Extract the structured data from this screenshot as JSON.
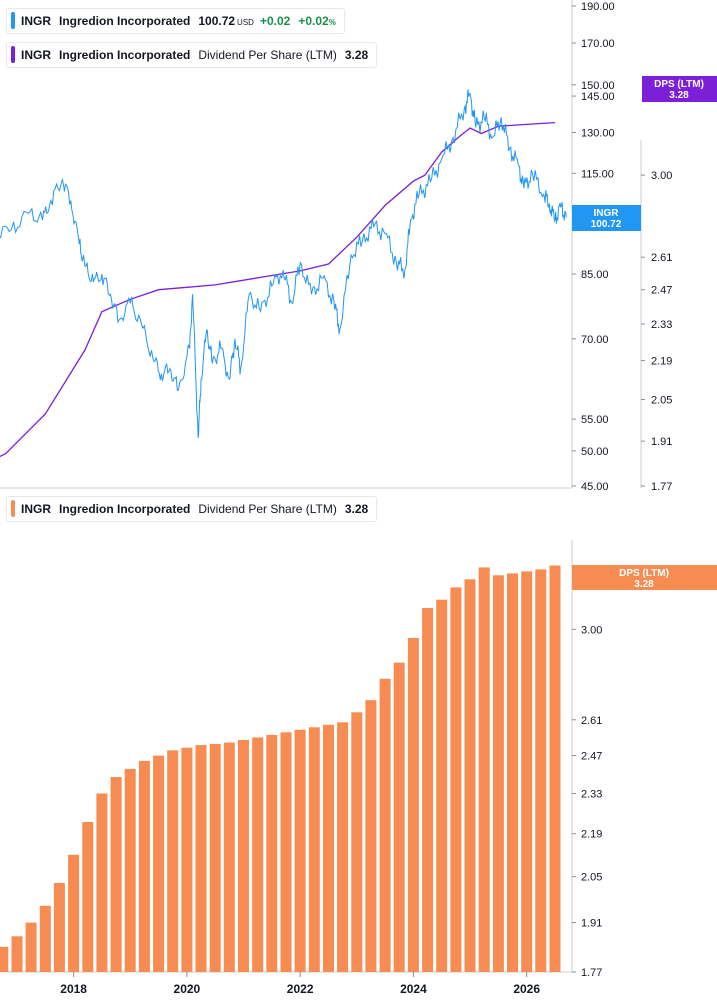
{
  "legend_price": {
    "ticker": "INGR",
    "name": "Ingredion Incorporated",
    "price": "100.72",
    "currency": "USD",
    "change": "+0.02",
    "change_pct": "+0.02",
    "pct_sign": "%"
  },
  "legend_dps": {
    "ticker": "INGR",
    "name": "Ingredion Incorporated",
    "metric": "Dividend Per Share (LTM)",
    "value": "3.28"
  },
  "tags": {
    "price_ticker": "INGR",
    "price_value": "100.72",
    "dps_label": "DPS (LTM)",
    "dps_value": "3.28"
  },
  "colors": {
    "price_line": "#2196f3",
    "dps_line": "#7b1fd9",
    "bars": "#f78c52",
    "legend_price_bar": "#2196f3",
    "legend_dps_top_bar": "#7b1fd9",
    "legend_dps_bottom_bar": "#f78c52"
  },
  "chart_data": [
    {
      "type": "line",
      "title": "INGR Ingredion Incorporated",
      "x_range": [
        2016.0,
        2026.8
      ],
      "price_axis": {
        "scale": "log",
        "ticks": [
          "190.00",
          "170.00",
          "150.00",
          "145.00",
          "130.00",
          "115.00",
          "100.00",
          "85.00",
          "70.00",
          "55.00",
          "50.00",
          "45.00"
        ],
        "range": [
          45,
          190
        ]
      },
      "dps_axis": {
        "scale": "log",
        "ticks": [
          "3.00",
          "2.61",
          "2.47",
          "2.33",
          "2.19",
          "2.05",
          "1.91",
          "1.77"
        ],
        "range": [
          1.77,
          3.55
        ]
      },
      "series": [
        {
          "name": "Ingredion Incorporated",
          "axis": "price",
          "x": [
            2016.0,
            2016.3,
            2016.6,
            2016.9,
            2017.2,
            2017.45,
            2017.6,
            2017.8,
            2017.95,
            2018.1,
            2018.2,
            2018.35,
            2018.5,
            2018.65,
            2018.8,
            2019.0,
            2019.2,
            2019.4,
            2019.55,
            2019.7,
            2019.85,
            2020.05,
            2020.1,
            2020.2,
            2020.25,
            2020.35,
            2020.45,
            2020.6,
            2020.75,
            2020.85,
            2020.95,
            2021.1,
            2021.3,
            2021.5,
            2021.7,
            2021.85,
            2022.0,
            2022.2,
            2022.4,
            2022.6,
            2022.7,
            2022.9,
            2023.1,
            2023.3,
            2023.5,
            2023.7,
            2023.85,
            2023.95,
            2024.1,
            2024.3,
            2024.5,
            2024.7,
            2024.9,
            2025.0,
            2025.1,
            2025.25,
            2025.4,
            2025.55,
            2025.7,
            2025.85,
            2025.95,
            2026.1,
            2026.3,
            2026.4,
            2026.5,
            2026.6,
            2026.7
          ],
          "values": [
            104,
            98,
            96,
            97,
            102,
            100,
            106,
            113,
            106,
            93,
            87,
            83,
            85,
            80,
            74,
            78,
            73,
            66,
            63,
            64,
            60,
            68,
            80,
            52,
            62,
            72,
            65,
            68,
            62,
            70,
            64,
            80,
            76,
            82,
            86,
            78,
            88,
            80,
            84,
            78,
            72,
            90,
            94,
            98,
            96,
            88,
            86,
            100,
            108,
            112,
            120,
            128,
            140,
            146,
            132,
            136,
            128,
            136,
            124,
            118,
            110,
            115,
            108,
            105,
            100,
            104,
            100.72
          ]
        },
        {
          "name": "Dividend Per Share (LTM)",
          "axis": "dps",
          "x": [
            2016.0,
            2016.8,
            2017.5,
            2018.2,
            2018.5,
            2019.0,
            2019.5,
            2020.0,
            2020.5,
            2021.0,
            2021.5,
            2022.0,
            2022.5,
            2023.0,
            2023.5,
            2024.0,
            2024.2,
            2024.5,
            2024.8,
            2025.0,
            2025.2,
            2025.5,
            2026.0,
            2026.5
          ],
          "values": [
            1.8,
            1.87,
            2.0,
            2.23,
            2.38,
            2.43,
            2.47,
            2.48,
            2.49,
            2.51,
            2.53,
            2.55,
            2.58,
            2.7,
            2.85,
            2.97,
            3.0,
            3.12,
            3.2,
            3.25,
            3.22,
            3.26,
            3.27,
            3.28
          ]
        }
      ]
    },
    {
      "type": "bar",
      "title": "INGR Ingredion Incorporated Dividend Per Share (LTM)",
      "xlabel": "",
      "x_ticks": [
        "2018",
        "2020",
        "2022",
        "2024",
        "2026"
      ],
      "x_tick_values": [
        2018,
        2020,
        2022,
        2024,
        2026
      ],
      "x_range": [
        2016.7,
        2026.8
      ],
      "y_axis": {
        "scale": "log",
        "ticks": [
          "3.00",
          "2.61",
          "2.47",
          "2.33",
          "2.19",
          "2.05",
          "1.91",
          "1.77"
        ],
        "range": [
          1.77,
          3.55
        ]
      },
      "series": [
        {
          "name": "Dividend Per Share (LTM)",
          "x": [
            2016.75,
            2017.0,
            2017.25,
            2017.5,
            2017.75,
            2018.0,
            2018.25,
            2018.5,
            2018.75,
            2019.0,
            2019.25,
            2019.5,
            2019.75,
            2020.0,
            2020.25,
            2020.5,
            2020.75,
            2021.0,
            2021.25,
            2021.5,
            2021.75,
            2022.0,
            2022.25,
            2022.5,
            2022.75,
            2023.0,
            2023.25,
            2023.5,
            2023.75,
            2024.0,
            2024.25,
            2024.5,
            2024.75,
            2025.0,
            2025.25,
            2025.5,
            2025.75,
            2026.0,
            2026.25,
            2026.5
          ],
          "values": [
            1.84,
            1.87,
            1.91,
            1.96,
            2.03,
            2.12,
            2.23,
            2.33,
            2.39,
            2.42,
            2.45,
            2.47,
            2.49,
            2.5,
            2.51,
            2.515,
            2.52,
            2.53,
            2.54,
            2.55,
            2.56,
            2.57,
            2.58,
            2.59,
            2.6,
            2.64,
            2.69,
            2.78,
            2.85,
            2.96,
            3.1,
            3.14,
            3.2,
            3.24,
            3.3,
            3.26,
            3.27,
            3.28,
            3.29,
            3.31
          ]
        }
      ]
    }
  ]
}
